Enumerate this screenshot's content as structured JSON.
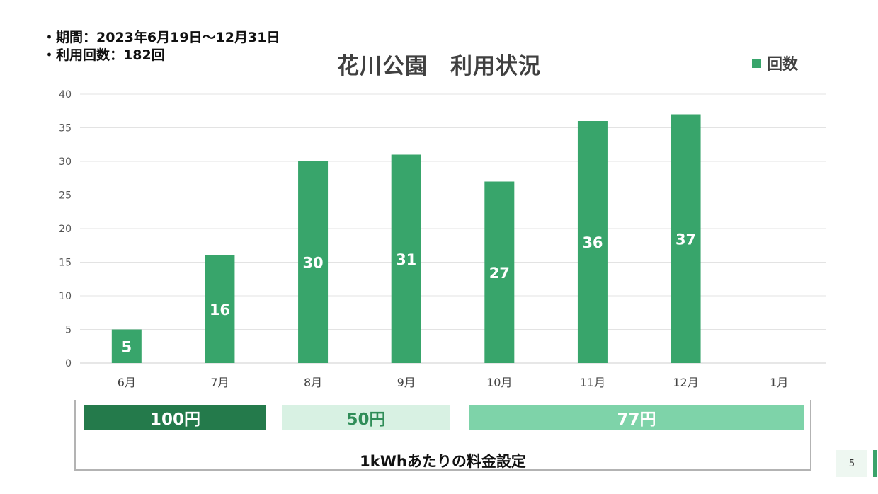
{
  "info": {
    "period": "・期間：2023年6月19日〜12月31日",
    "usage": "・利用回数：182回"
  },
  "chart_data": {
    "type": "bar",
    "title": "花川公園　利用状況",
    "categories": [
      "6月",
      "7月",
      "8月",
      "9月",
      "10月",
      "11月",
      "12月",
      "1月"
    ],
    "series": [
      {
        "name": "回数",
        "values": [
          5,
          16,
          30,
          31,
          27,
          36,
          37,
          null
        ],
        "color": "#38a56b"
      }
    ],
    "ylim": [
      0,
      40
    ],
    "yticks": [
      0,
      5,
      10,
      15,
      20,
      25,
      30,
      35,
      40
    ],
    "grid": true,
    "legend": "top-right",
    "xlabel": "",
    "ylabel": ""
  },
  "rates": [
    {
      "label": "100円",
      "color": "#247a4b"
    },
    {
      "label": "50円",
      "color": "#d8f1e3"
    },
    {
      "label": "77円",
      "color": "#7ed3a9"
    }
  ],
  "rate_caption": "1kWhあたりの料金設定",
  "page_number": "5"
}
